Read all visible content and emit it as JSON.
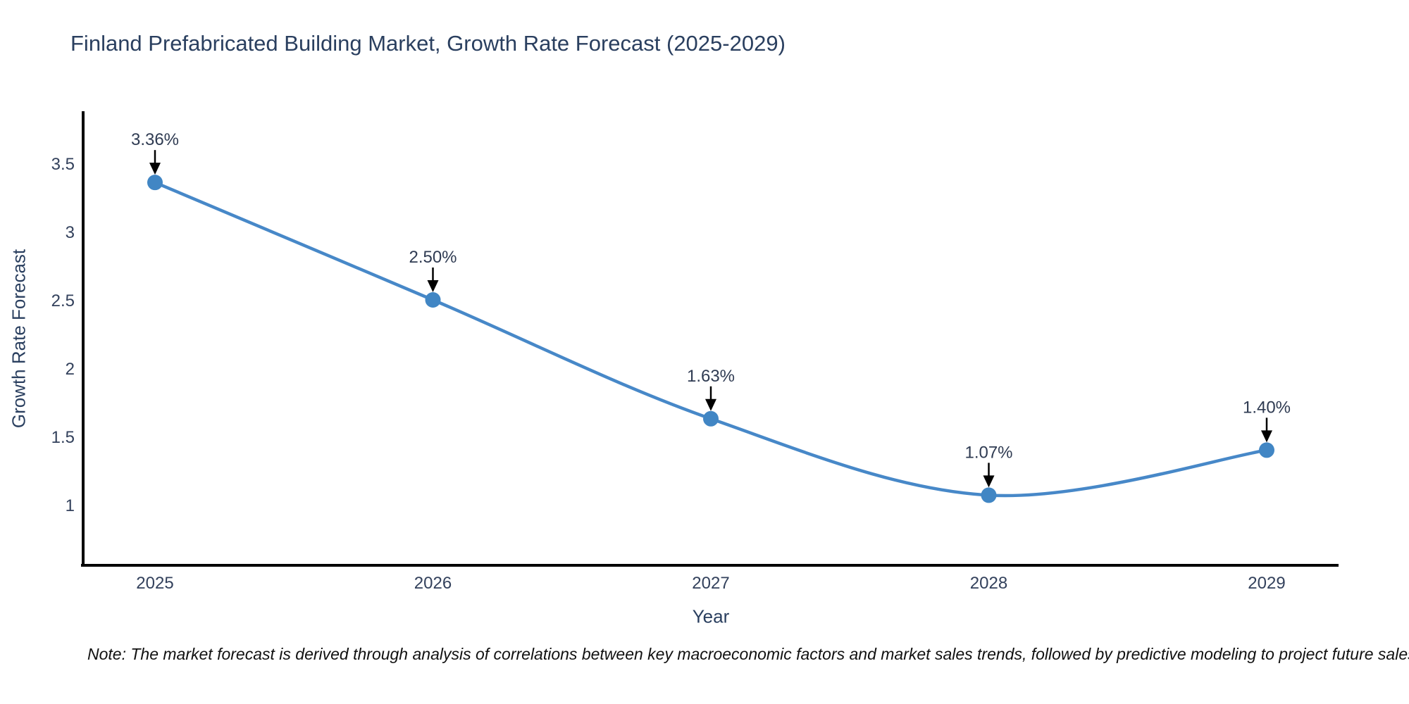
{
  "title": "Finland Prefabricated Building Market, Growth Rate Forecast (2025-2029)",
  "note": "Note: The market forecast is derived through analysis of correlations between key macroeconomic factors and market sales trends, followed by predictive modeling to project future sales",
  "chart_data": {
    "type": "line",
    "title": "Finland Prefabricated Building Market, Growth Rate Forecast (2025-2029)",
    "xlabel": "Year",
    "ylabel": "Growth Rate Forecast",
    "categories": [
      "2025",
      "2026",
      "2027",
      "2028",
      "2029"
    ],
    "series": [
      {
        "name": "Growth Rate Forecast",
        "values": [
          3.36,
          2.5,
          1.63,
          1.07,
          1.4
        ],
        "point_labels": [
          "3.36%",
          "2.50%",
          "1.63%",
          "1.07%",
          "1.40%"
        ]
      }
    ],
    "y_tick_labels": [
      "3.5",
      "3",
      "2.5",
      "2",
      "1.5",
      "1"
    ],
    "y_tick_values": [
      3.5,
      3,
      2.5,
      2,
      1.5,
      1
    ],
    "ylim": [
      0.56,
      3.87
    ],
    "line_shape": "spline",
    "grid": false,
    "legend_position": "none",
    "colors": {
      "line": "#4788c8",
      "marker": "#4186c4",
      "axis": "#000000",
      "title_text": "#2a3f5f",
      "tick_text": "#33415c",
      "annotation_arrow": "#000000",
      "note_text": "#111111",
      "background": "#ffffff"
    }
  }
}
